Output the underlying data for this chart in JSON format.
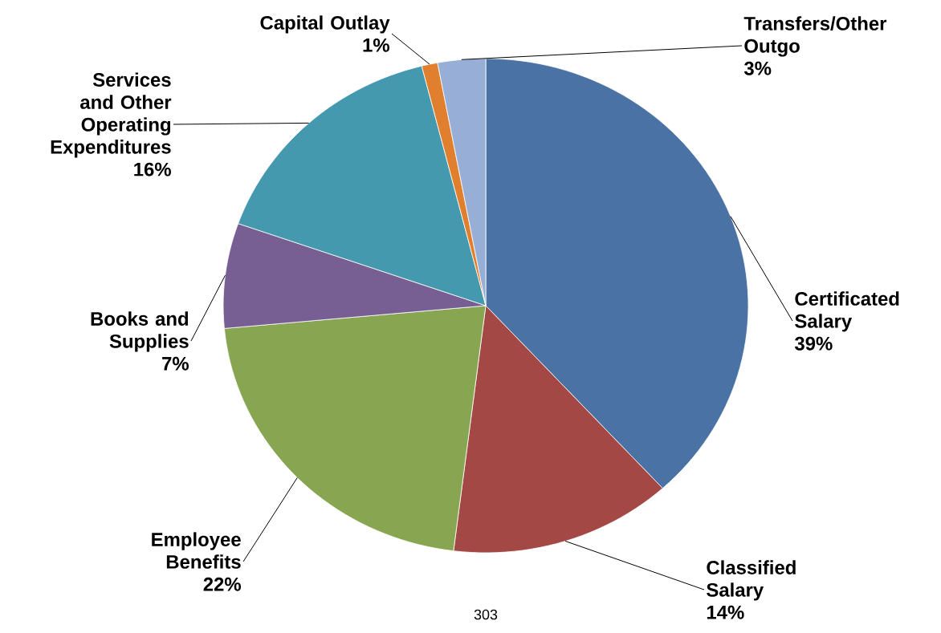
{
  "chart_data": {
    "type": "pie",
    "categories": [
      "Certificated Salary",
      "Classified Salary",
      "Employee Benefits",
      "Books and Supplies",
      "Services and Other Operating Expenditures",
      "Capital Outlay",
      "Transfers/Other Outgo"
    ],
    "values": [
      39,
      14,
      22,
      7,
      16,
      1,
      3
    ],
    "value_labels": [
      "39%",
      "14%",
      "22%",
      "7%",
      "16%",
      "1%",
      "3%"
    ],
    "colors": [
      "#4a72a4",
      "#a44846",
      "#88a552",
      "#775f93",
      "#4599ae",
      "#e07f2e",
      "#97aed6"
    ],
    "annotations": [
      "303"
    ]
  }
}
